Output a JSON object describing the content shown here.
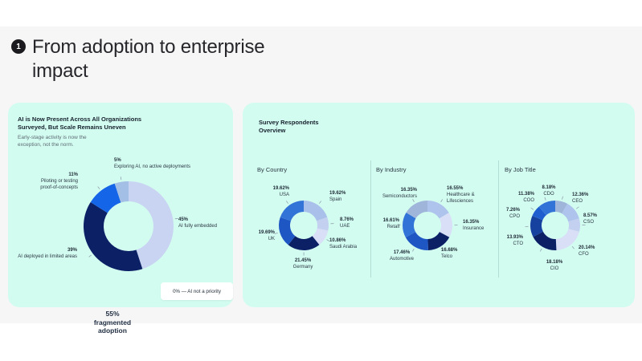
{
  "page": {
    "badge": "1",
    "title": "From adoption to enterprise\nimpact"
  },
  "left_panel": {
    "title": "AI is Now Present Across All Organizations\nSurveyed, But Scale Remains Uneven",
    "subtitle": "Early-stage activity is now the\nexception, not the norm.",
    "note": "0% — AI not a priority"
  },
  "right_panel": {
    "title": "Survey Respondents\nOverview"
  },
  "chart_data": [
    {
      "id": "adoption",
      "type": "donut",
      "title": "AI is Now Present Across All Organizations Surveyed, But Scale Remains Uneven",
      "center_label": "55%\nfragmented\nadoption",
      "note": "0% — AI not a priority",
      "slices": [
        {
          "label": "AI fully embedded",
          "pct": "45%",
          "value": 45,
          "color": "#c9d4f2"
        },
        {
          "label": "AI deployed in limited areas",
          "pct": "39%",
          "value": 39,
          "color": "#0c2066"
        },
        {
          "label": "Piloting or testing\nproof-of-concepts",
          "pct": "11%",
          "value": 11,
          "color": "#1565e8"
        },
        {
          "label": "Exploring AI, no active deployments",
          "pct": "5%",
          "value": 5,
          "color": "#a4bfe6"
        }
      ]
    },
    {
      "id": "country",
      "type": "donut",
      "title": "By Country",
      "slices": [
        {
          "label": "Spain",
          "pct": "19.62%",
          "value": 19.62,
          "color": "#a9c0ea"
        },
        {
          "label": "UAE",
          "pct": "8.76%",
          "value": 8.76,
          "color": "#c3d0f0"
        },
        {
          "label": "Saudi Arabia",
          "pct": "10.86%",
          "value": 10.86,
          "color": "#d8dff6"
        },
        {
          "label": "Germany",
          "pct": "21.45%",
          "value": 21.45,
          "color": "#0c2066"
        },
        {
          "label": "UK",
          "pct": "19.69%",
          "value": 19.69,
          "color": "#1e56c4"
        },
        {
          "label": "USA",
          "pct": "19.62%",
          "value": 19.62,
          "color": "#3273d8"
        }
      ]
    },
    {
      "id": "industry",
      "type": "donut",
      "title": "By Industry",
      "slices": [
        {
          "label": "Healthcare &\nLifesciences",
          "pct": "16.55%",
          "value": 16.55,
          "color": "#aec4ec"
        },
        {
          "label": "Insurance",
          "pct": "16.35%",
          "value": 16.35,
          "color": "#d8dff6"
        },
        {
          "label": "Telco",
          "pct": "16.68%",
          "value": 16.68,
          "color": "#0c2066"
        },
        {
          "label": "Automotive",
          "pct": "17.46%",
          "value": 17.46,
          "color": "#1e56c4"
        },
        {
          "label": "Retail",
          "pct": "16.61%",
          "value": 16.61,
          "color": "#3273d8"
        },
        {
          "label": "Semiconductors",
          "pct": "16.35%",
          "value": 16.35,
          "color": "#9fb6da"
        }
      ]
    },
    {
      "id": "job_title",
      "type": "donut",
      "title": "By Job Title",
      "slices": [
        {
          "label": "CDO",
          "pct": "8.18%",
          "value": 8.18,
          "color": "#9fb6da"
        },
        {
          "label": "CEO",
          "pct": "12.36%",
          "value": 12.36,
          "color": "#aec4ec"
        },
        {
          "label": "CSO",
          "pct": "8.57%",
          "value": 8.57,
          "color": "#c3d0f0"
        },
        {
          "label": "CFO",
          "pct": "20.14%",
          "value": 20.14,
          "color": "#d8dff6"
        },
        {
          "label": "CIO",
          "pct": "18.18%",
          "value": 18.18,
          "color": "#0c2066"
        },
        {
          "label": "CTO",
          "pct": "13.93%",
          "value": 13.93,
          "color": "#16419f"
        },
        {
          "label": "CPO",
          "pct": "7.26%",
          "value": 7.26,
          "color": "#1e5ecf"
        },
        {
          "label": "COO",
          "pct": "11.38%",
          "value": 11.38,
          "color": "#3273d8"
        }
      ]
    }
  ]
}
